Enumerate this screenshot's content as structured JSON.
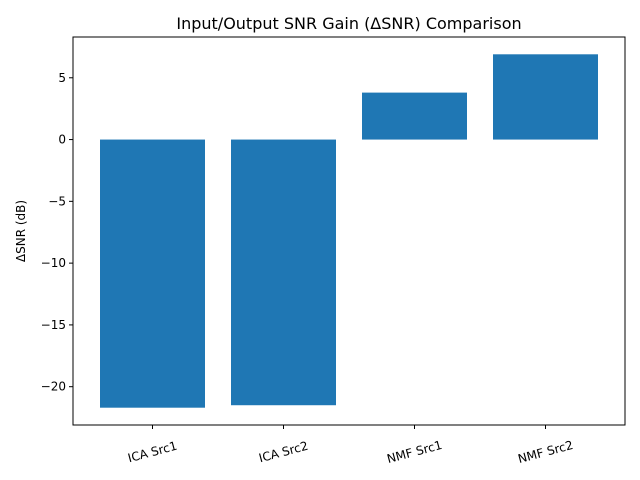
{
  "chart_data": {
    "type": "bar",
    "title": "Input/Output SNR Gain (ΔSNR) Comparison",
    "xlabel": "",
    "ylabel": "ΔSNR (dB)",
    "categories": [
      "ICA Src1",
      "ICA Src2",
      "NMF Src1",
      "NMF Src2"
    ],
    "values": [
      -21.7,
      -21.5,
      3.8,
      6.9
    ],
    "ylim": [
      -23.1,
      8.3
    ],
    "yticks": [
      5,
      0,
      -5,
      -10,
      -15,
      -20
    ],
    "ytick_labels": [
      "5",
      "0",
      "−5",
      "−10",
      "−15",
      "−20"
    ],
    "xtick_rotation": 15,
    "bar_color": "#1f77b4",
    "grid": false,
    "legend": "none"
  }
}
